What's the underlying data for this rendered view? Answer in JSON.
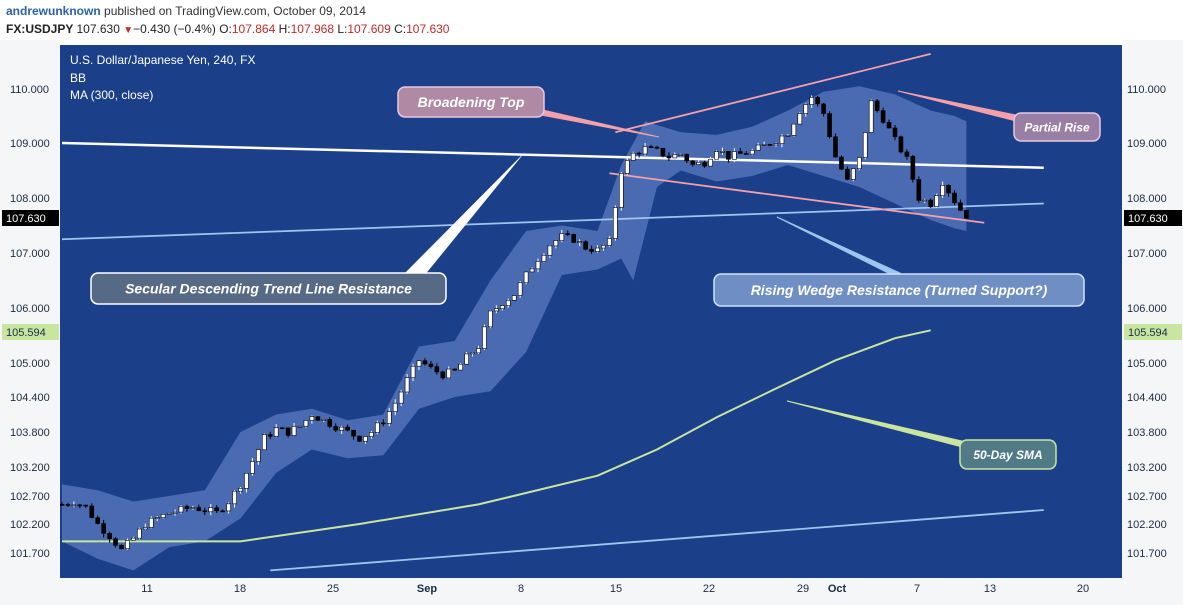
{
  "header": {
    "author": "andrewunknown",
    "published": "published on TradingView.com, October 09, 2014",
    "symbol": "FX:USDJPY",
    "last": "107.630",
    "change": "−0.430 (−0.4%)",
    "o_label": "O:",
    "o_value": "107.864",
    "h_label": "H:",
    "h_value": "107.968",
    "l_label": "L:",
    "l_value": "107.609",
    "c_label": "C:",
    "c_value": "107.630"
  },
  "legend": {
    "title": "U.S. Dollar/Japanese Yen, 240, FX",
    "bb": "BB",
    "ma": "MA (300, close)"
  },
  "colors": {
    "background": "#1c3f8a",
    "band_fill": "#5a7bbf",
    "bull_candle": "#ffffff",
    "bear_candle": "#000000",
    "trendline_white": "#ffffff",
    "trendline_light": "#9ec5f0",
    "pink_line": "#f2a0aa",
    "sma": "#c8e6a0",
    "axis_bg": "#f5f6f8"
  },
  "chart_data": {
    "type": "candlestick",
    "yaxis_ticks": [
      "110.000",
      "109.000",
      "108.000",
      "107.000",
      "106.000",
      "105.000",
      "104.400",
      "103.800",
      "103.200",
      "102.700",
      "102.200",
      "101.700"
    ],
    "xaxis_ticks": [
      "11",
      "18",
      "25",
      "Sep",
      "8",
      "15",
      "22",
      "29",
      "Oct",
      "7",
      "13",
      "20"
    ],
    "price_tags": [
      {
        "value": "107.630",
        "style": "last"
      },
      {
        "value": "105.594",
        "style": "ma"
      }
    ],
    "close_path": [
      [
        0,
        102.55
      ],
      [
        2,
        102.6
      ],
      [
        4,
        102.5
      ],
      [
        6,
        102.2
      ],
      [
        8,
        102.0
      ],
      [
        10,
        101.75
      ],
      [
        12,
        101.95
      ],
      [
        14,
        102.2
      ],
      [
        16,
        102.3
      ],
      [
        18,
        102.4
      ],
      [
        20,
        102.45
      ],
      [
        22,
        102.5
      ],
      [
        24,
        102.45
      ],
      [
        26,
        102.4
      ],
      [
        28,
        102.6
      ],
      [
        30,
        102.9
      ],
      [
        32,
        103.3
      ],
      [
        34,
        103.7
      ],
      [
        36,
        103.85
      ],
      [
        38,
        103.8
      ],
      [
        40,
        103.9
      ],
      [
        42,
        104.1
      ],
      [
        44,
        104.0
      ],
      [
        46,
        103.9
      ],
      [
        48,
        103.8
      ],
      [
        50,
        103.7
      ],
      [
        52,
        103.8
      ],
      [
        54,
        104.0
      ],
      [
        56,
        104.3
      ],
      [
        58,
        104.7
      ],
      [
        60,
        105.05
      ],
      [
        62,
        104.9
      ],
      [
        64,
        104.8
      ],
      [
        66,
        104.85
      ],
      [
        68,
        105.1
      ],
      [
        70,
        105.3
      ],
      [
        72,
        105.9
      ],
      [
        74,
        106.1
      ],
      [
        76,
        106.25
      ],
      [
        78,
        106.6
      ],
      [
        80,
        106.9
      ],
      [
        82,
        107.15
      ],
      [
        84,
        107.3
      ],
      [
        86,
        107.25
      ],
      [
        88,
        107.1
      ],
      [
        90,
        107.05
      ],
      [
        92,
        107.2
      ],
      [
        94,
        108.5
      ],
      [
        96,
        108.8
      ],
      [
        98,
        108.9
      ],
      [
        100,
        108.85
      ],
      [
        102,
        108.75
      ],
      [
        104,
        108.8
      ],
      [
        106,
        108.6
      ],
      [
        108,
        108.65
      ],
      [
        110,
        108.9
      ],
      [
        112,
        108.75
      ],
      [
        114,
        108.8
      ],
      [
        116,
        108.85
      ],
      [
        118,
        108.95
      ],
      [
        120,
        109.05
      ],
      [
        122,
        109.2
      ],
      [
        124,
        109.6
      ],
      [
        126,
        109.85
      ],
      [
        128,
        109.55
      ],
      [
        130,
        108.75
      ],
      [
        132,
        108.3
      ],
      [
        134,
        108.7
      ],
      [
        136,
        109.75
      ],
      [
        138,
        109.45
      ],
      [
        140,
        109.05
      ],
      [
        142,
        108.7
      ],
      [
        144,
        108.0
      ],
      [
        146,
        107.9
      ],
      [
        148,
        108.3
      ],
      [
        150,
        107.95
      ],
      [
        152,
        107.63
      ]
    ],
    "bollinger_upper": [
      [
        0,
        102.9
      ],
      [
        6,
        102.8
      ],
      [
        12,
        102.6
      ],
      [
        18,
        102.7
      ],
      [
        24,
        102.8
      ],
      [
        30,
        103.8
      ],
      [
        36,
        104.1
      ],
      [
        42,
        104.2
      ],
      [
        48,
        104.0
      ],
      [
        54,
        104.1
      ],
      [
        60,
        105.3
      ],
      [
        66,
        105.4
      ],
      [
        72,
        106.5
      ],
      [
        78,
        107.4
      ],
      [
        84,
        107.5
      ],
      [
        90,
        107.4
      ],
      [
        94,
        108.6
      ],
      [
        98,
        109.4
      ],
      [
        104,
        109.2
      ],
      [
        110,
        109.15
      ],
      [
        116,
        109.3
      ],
      [
        122,
        109.6
      ],
      [
        128,
        109.95
      ],
      [
        134,
        110.05
      ],
      [
        140,
        109.9
      ],
      [
        146,
        109.6
      ],
      [
        150,
        109.5
      ],
      [
        152,
        109.4
      ]
    ],
    "bollinger_lower": [
      [
        0,
        101.9
      ],
      [
        6,
        101.6
      ],
      [
        12,
        101.4
      ],
      [
        18,
        101.8
      ],
      [
        24,
        101.9
      ],
      [
        30,
        102.3
      ],
      [
        36,
        103.1
      ],
      [
        42,
        103.5
      ],
      [
        48,
        103.35
      ],
      [
        54,
        103.4
      ],
      [
        60,
        104.2
      ],
      [
        66,
        104.4
      ],
      [
        72,
        104.5
      ],
      [
        78,
        105.2
      ],
      [
        84,
        106.6
      ],
      [
        90,
        106.7
      ],
      [
        94,
        106.9
      ],
      [
        96,
        106.5
      ],
      [
        100,
        108.2
      ],
      [
        104,
        108.5
      ],
      [
        110,
        108.3
      ],
      [
        116,
        108.4
      ],
      [
        122,
        108.6
      ],
      [
        128,
        108.4
      ],
      [
        134,
        108.2
      ],
      [
        140,
        107.9
      ],
      [
        146,
        107.6
      ],
      [
        150,
        107.45
      ],
      [
        152,
        107.4
      ]
    ],
    "sma_300": [
      [
        0,
        101.9
      ],
      [
        30,
        101.9
      ],
      [
        50,
        102.2
      ],
      [
        70,
        102.55
      ],
      [
        90,
        103.05
      ],
      [
        100,
        103.5
      ],
      [
        110,
        104.05
      ],
      [
        120,
        104.55
      ],
      [
        130,
        105.05
      ],
      [
        140,
        105.45
      ],
      [
        146,
        105.594
      ]
    ],
    "trendlines": [
      {
        "name": "Secular Descending Trend Line Resistance",
        "color": "white",
        "from": [
          0,
          109.0
        ],
        "to": [
          165,
          108.55
        ]
      },
      {
        "name": "Rising Wedge Resistance",
        "color": "light",
        "from": [
          0,
          107.25
        ],
        "to": [
          165,
          107.9
        ]
      },
      {
        "name": "Lower Rising Line",
        "color": "light",
        "from": [
          35,
          101.4
        ],
        "to": [
          165,
          102.45
        ]
      },
      {
        "name": "Broadening Top Upper",
        "color": "pink",
        "from": [
          93,
          109.2
        ],
        "to": [
          146,
          110.65
        ]
      },
      {
        "name": "Broadening Top Lower",
        "color": "pink",
        "from": [
          92,
          108.45
        ],
        "to": [
          155,
          107.55
        ]
      }
    ],
    "annotations": [
      {
        "text": "Broadening Top"
      },
      {
        "text": "Secular Descending Trend Line Resistance"
      },
      {
        "text": "Rising Wedge Resistance (Turned Support?)"
      },
      {
        "text": "Partial Rise"
      },
      {
        "text": "50-Day SMA"
      }
    ]
  }
}
